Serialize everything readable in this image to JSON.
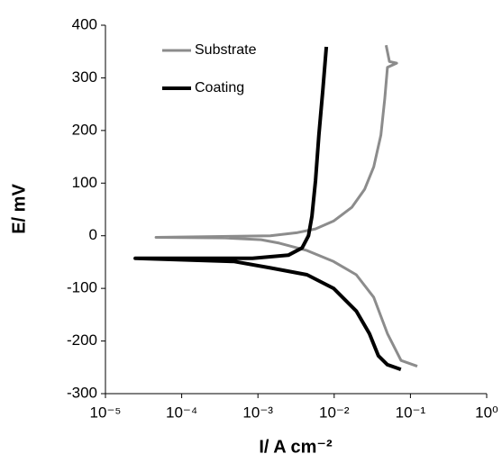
{
  "chart_data": {
    "type": "line",
    "xlabel": "I/ A cm⁻²",
    "ylabel": "E/ mV",
    "xscale": "log",
    "xlim": [
      1e-05,
      1
    ],
    "xticks": [
      {
        "value": 1e-05,
        "label": "10⁻⁵"
      },
      {
        "value": 0.0001,
        "label": "10⁻⁴"
      },
      {
        "value": 0.001,
        "label": "10⁻³"
      },
      {
        "value": 0.01,
        "label": "10⁻²"
      },
      {
        "value": 0.1,
        "label": "10⁻¹"
      },
      {
        "value": 1,
        "label": "10⁰"
      }
    ],
    "ylim": [
      -300,
      400
    ],
    "yticks": [
      -300,
      -200,
      -100,
      0,
      100,
      200,
      300,
      400
    ],
    "legend": "upper left",
    "series": [
      {
        "name": "Substrate",
        "color": "#8c8c8c",
        "x": [
          0.123,
          0.0753,
          0.05,
          0.033,
          0.0195,
          0.0098,
          0.0044,
          0.0019,
          0.0011,
          0.00037,
          4.6e-05,
          0.00145,
          0.0033,
          0.0057,
          0.0098,
          0.017,
          0.025,
          0.033,
          0.041,
          0.046,
          0.05,
          0.066,
          0.053,
          0.048
        ],
        "values": [
          -248,
          -237,
          -186,
          -117,
          -74,
          -49,
          -28,
          -14,
          -7.5,
          -4,
          -3,
          0,
          6,
          13,
          28,
          54,
          88,
          131,
          191,
          260,
          320,
          328,
          331,
          362
        ]
      },
      {
        "name": "Coating",
        "color": "#000000",
        "x": [
          0.075,
          0.05,
          0.038,
          0.029,
          0.0195,
          0.0098,
          0.0044,
          0.00145,
          0.00049,
          2.46e-05,
          0.00085,
          0.0025,
          0.0038,
          0.0046,
          0.0051,
          0.0057,
          0.0063,
          0.0071,
          0.0079
        ],
        "values": [
          -254,
          -245,
          -228,
          -186,
          -143,
          -100,
          -74,
          -61,
          -49,
          -43,
          -43,
          -37,
          -23,
          0,
          37,
          105,
          191,
          277,
          359
        ]
      }
    ]
  }
}
